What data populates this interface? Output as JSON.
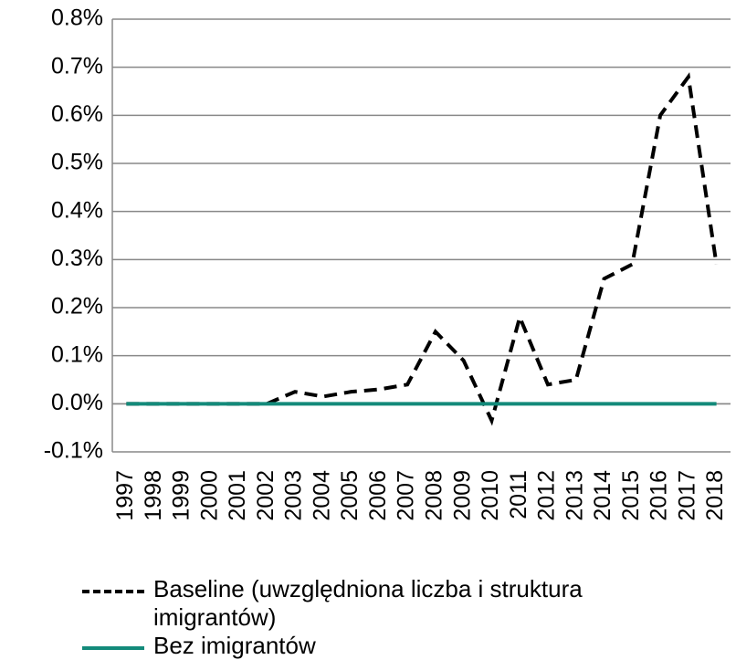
{
  "chart_data": {
    "type": "line",
    "categories": [
      "1997",
      "1998",
      "1999",
      "2000",
      "2001",
      "2002",
      "2003",
      "2004",
      "2005",
      "2006",
      "2007",
      "2008",
      "2009",
      "2010",
      "2011",
      "2012",
      "2013",
      "2014",
      "2015",
      "2016",
      "2017",
      "2018"
    ],
    "series": [
      {
        "name": "Baseline (uwzględniona liczba i struktura imigrantów)",
        "color": "#000000",
        "dashed": true,
        "values": [
          0,
          0,
          0,
          0,
          0,
          0,
          0.025,
          0.015,
          0.025,
          0.03,
          0.04,
          0.15,
          0.09,
          -0.035,
          0.18,
          0.04,
          0.05,
          0.26,
          0.29,
          0.6,
          0.68,
          0.29
        ]
      },
      {
        "name": "Bez imigrantów",
        "color": "#138a7a",
        "dashed": false,
        "values": [
          0,
          0,
          0,
          0,
          0,
          0,
          0,
          0,
          0,
          0,
          0,
          0,
          0,
          0,
          0,
          0,
          0,
          0,
          0,
          0,
          0,
          0
        ]
      }
    ],
    "ylim": [
      -0.1,
      0.8
    ],
    "yticks": [
      {
        "value": -0.1,
        "label": "-0.1%"
      },
      {
        "value": 0,
        "label": "0.0%"
      },
      {
        "value": 0.1,
        "label": "0.1%"
      },
      {
        "value": 0.2,
        "label": "0.2%"
      },
      {
        "value": 0.3,
        "label": "0.3%"
      },
      {
        "value": 0.4,
        "label": "0.4%"
      },
      {
        "value": 0.5,
        "label": "0.5%"
      },
      {
        "value": 0.6,
        "label": "0.6%"
      },
      {
        "value": 0.7,
        "label": "0.7%"
      },
      {
        "value": 0.8,
        "label": "0.8%"
      }
    ],
    "grid": true
  }
}
